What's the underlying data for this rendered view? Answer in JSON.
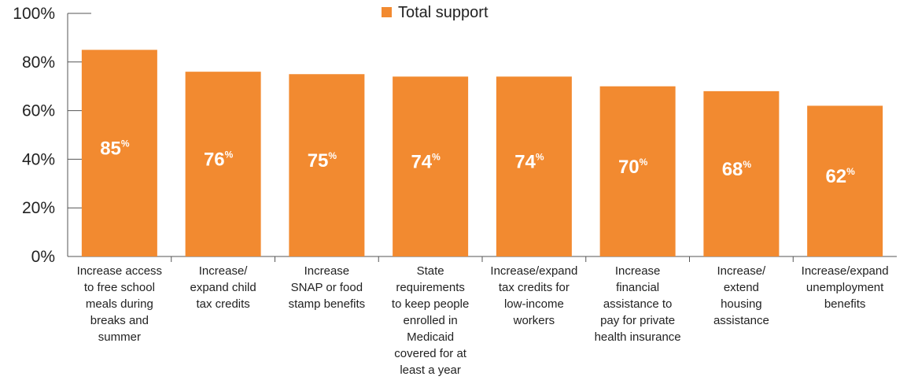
{
  "chart_data": {
    "type": "bar",
    "title": "",
    "xlabel": "",
    "ylabel": "",
    "ylim": [
      0,
      100
    ],
    "y_ticks": [
      0,
      20,
      40,
      60,
      80,
      100
    ],
    "y_tick_labels": [
      "0%",
      "20%",
      "40%",
      "60%",
      "80%",
      "100%"
    ],
    "grid": false,
    "legend": {
      "position": "top-center",
      "entries": [
        "Total support"
      ]
    },
    "categories": [
      [
        "Increase access",
        "to free school",
        "meals during",
        "breaks and",
        "summer"
      ],
      [
        "Increase/",
        "expand child",
        "tax credits"
      ],
      [
        "Increase",
        "SNAP or food",
        "stamp benefits"
      ],
      [
        "State",
        "requirements",
        "to keep people",
        "enrolled in",
        "Medicaid",
        "covered for at",
        "least a year"
      ],
      [
        "Increase/expand",
        "tax credits for",
        "low-income",
        "workers"
      ],
      [
        "Increase",
        "financial",
        "assistance to",
        "pay for private",
        "health insurance"
      ],
      [
        "Increase/",
        "extend",
        "housing",
        "assistance"
      ],
      [
        "Increase/expand",
        "unemployment",
        "benefits"
      ]
    ],
    "series": [
      {
        "name": "Total support",
        "values": [
          85,
          76,
          75,
          74,
          74,
          70,
          68,
          62
        ],
        "data_labels": [
          "85",
          "76",
          "75",
          "74",
          "74",
          "70",
          "68",
          "62"
        ],
        "data_label_unit": "%",
        "color": "#F28A30"
      }
    ]
  },
  "colors": {
    "axis": "#555555",
    "text": "#222222",
    "label": "#ffffff"
  }
}
